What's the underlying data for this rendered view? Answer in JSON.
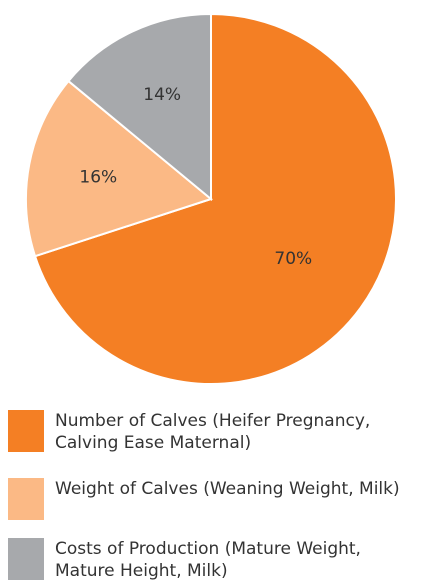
{
  "chart_data": {
    "type": "pie",
    "categories": [
      "Number of Calves (Heifer Pregnancy, Calving Ease Maternal)",
      "Weight of Calves (Weaning Weight, Milk)",
      "Costs of Production (Mature Weight, Mature Height, Milk)"
    ],
    "values": [
      70,
      16,
      14
    ],
    "value_labels": [
      "70%",
      "16%",
      "14%"
    ],
    "colors": [
      "#f47f24",
      "#fbb985",
      "#a7a9ac"
    ]
  }
}
